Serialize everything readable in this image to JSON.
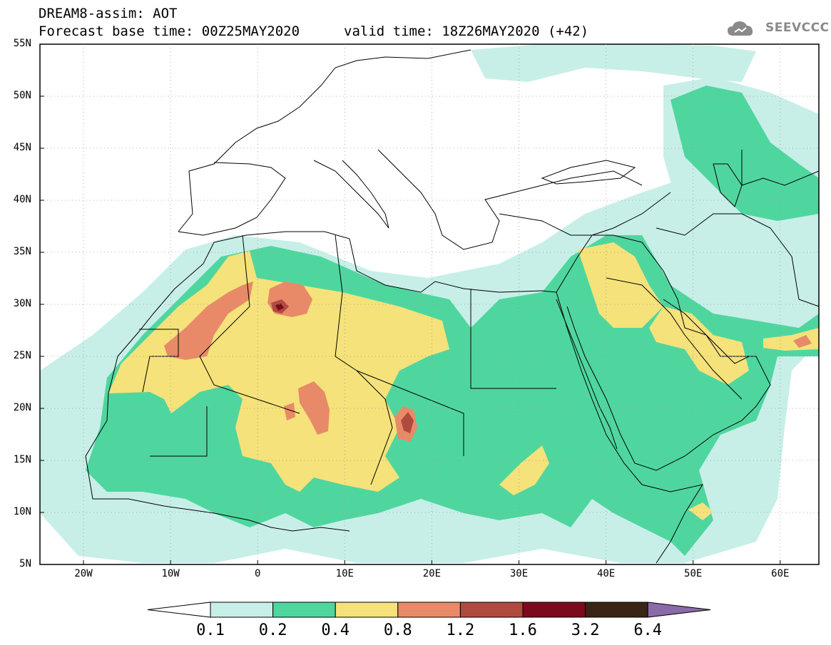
{
  "header": {
    "line1": "DREAM8-assim: AOT",
    "line2": "Forecast base time: 00Z25MAY2020",
    "valid_time": "valid time: 18Z26MAY2020 (+42)",
    "logo_text": "SEEVCCC"
  },
  "map": {
    "lat_labels": [
      "55N",
      "50N",
      "45N",
      "40N",
      "35N",
      "30N",
      "25N",
      "20N",
      "15N",
      "10N",
      "5N"
    ],
    "lon_labels": [
      "20W",
      "10W",
      "0",
      "10E",
      "20E",
      "30E",
      "40E",
      "50E",
      "60E"
    ]
  },
  "colorbar": {
    "labels": [
      "0.1",
      "0.2",
      "0.4",
      "0.8",
      "1.2",
      "1.6",
      "3.2",
      "6.4"
    ],
    "colors": [
      "#ffffff",
      "#c7efe8",
      "#4fd69f",
      "#f5e27a",
      "#e88a68",
      "#b04a3e",
      "#7c0a1d",
      "#3a2415",
      "#8a6aa8"
    ]
  }
}
